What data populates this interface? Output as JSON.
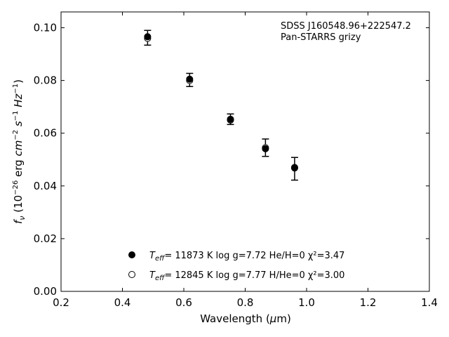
{
  "chart_data": {
    "type": "scatter",
    "title": "",
    "xlabel": "Wavelength (μm)",
    "ylabel": "fν (10⁻²⁶ erg cm⁻² s⁻¹ Hz⁻¹)",
    "xlim": [
      0.2,
      1.4
    ],
    "ylim": [
      0.0,
      0.106
    ],
    "x_ticks": [
      "0.2",
      "0.4",
      "0.6",
      "0.8",
      "1.0",
      "1.2",
      "1.4"
    ],
    "y_ticks": [
      "0.00",
      "0.02",
      "0.04",
      "0.06",
      "0.08",
      "0.10"
    ],
    "grid": false,
    "annotation": [
      "SDSS J160548.96+222547.2",
      "Pan-STARRS grizy"
    ],
    "observed": {
      "x": [
        0.482,
        0.619,
        0.752,
        0.866,
        0.961
      ],
      "y": [
        0.0962,
        0.0802,
        0.0653,
        0.0545,
        0.0465
      ],
      "yerr": [
        0.0028,
        0.0025,
        0.002,
        0.0033,
        0.0043
      ]
    },
    "series": [
      {
        "name": "Teff= 11873 K  log g=7.72  He/H=0  χ²=3.47",
        "marker": "filled-circle",
        "x": [
          0.482,
          0.619,
          0.752,
          0.866,
          0.961
        ],
        "y": [
          0.0966,
          0.0805,
          0.0653,
          0.0541,
          0.047
        ]
      },
      {
        "name": "Teff= 12845 K  log g=7.77  H/He=0  χ²=3.00",
        "marker": "open-circle",
        "x": [
          0.482,
          0.619,
          0.752,
          0.866,
          0.961
        ],
        "y": [
          0.096,
          0.08,
          0.065,
          0.0545,
          0.0468
        ]
      }
    ],
    "legend": {
      "placement": "bottom-center",
      "entries": [
        {
          "teff_label": "T",
          "teff_sub": "eff",
          "rest": "= 11873 K  log g=7.72  He/H=0  χ²=3.47"
        },
        {
          "teff_label": "T",
          "teff_sub": "eff",
          "rest": "= 12845 K  log g=7.77  H/He=0  χ²=3.00"
        }
      ]
    },
    "colors": {
      "marker": "#000000",
      "axis": "#000000",
      "background": "#ffffff"
    }
  }
}
